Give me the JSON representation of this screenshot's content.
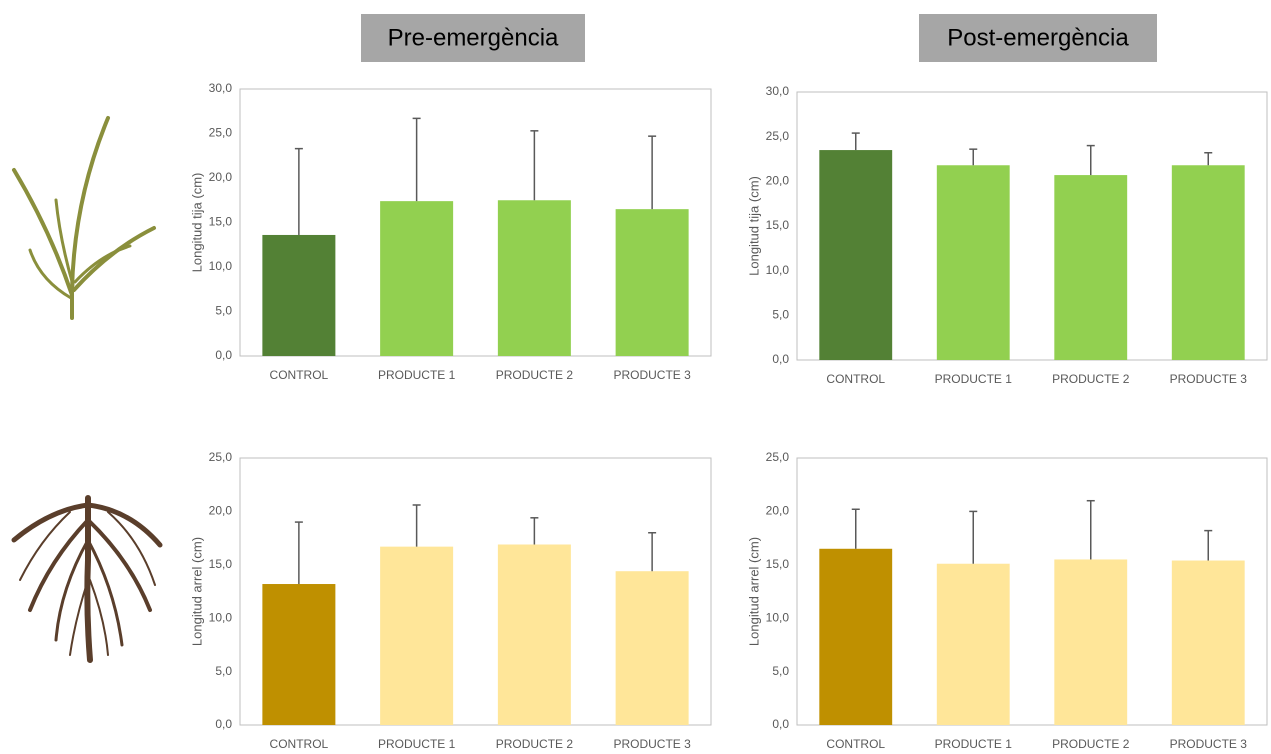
{
  "headers": [
    "Pre-emergència",
    "Post-emergència"
  ],
  "chart_data": [
    {
      "type": "bar",
      "y_label": "Longitud tija (cm)",
      "categories": [
        "CONTROL",
        "PRODUCTE 1",
        "PRODUCTE 2",
        "PRODUCTE 3"
      ],
      "values": [
        13.6,
        17.4,
        17.5,
        16.5
      ],
      "errors": [
        9.7,
        9.3,
        7.8,
        8.2
      ],
      "colors": [
        "#538135",
        "#92d050",
        "#92d050",
        "#92d050"
      ],
      "ylim": [
        0,
        30
      ],
      "yticks": [
        {
          "value": 0,
          "label": "0,0"
        },
        {
          "value": 5,
          "label": "5,0"
        },
        {
          "value": 10,
          "label": "10,0"
        },
        {
          "value": 15,
          "label": "15,0"
        },
        {
          "value": 20,
          "label": "20,0"
        },
        {
          "value": 25,
          "label": "25,0"
        },
        {
          "value": 30,
          "label": "30,0"
        }
      ],
      "grid": false
    },
    {
      "type": "bar",
      "y_label": "Longitud tija (cm)",
      "categories": [
        "CONTROL",
        "PRODUCTE 1",
        "PRODUCTE 2",
        "PRODUCTE 3"
      ],
      "values": [
        23.5,
        21.8,
        20.7,
        21.8
      ],
      "errors": [
        1.9,
        1.8,
        3.3,
        1.4
      ],
      "colors": [
        "#538135",
        "#92d050",
        "#92d050",
        "#92d050"
      ],
      "ylim": [
        0,
        30
      ],
      "yticks": [
        {
          "value": 0,
          "label": "0,0"
        },
        {
          "value": 5,
          "label": "5,0"
        },
        {
          "value": 10,
          "label": "10,0"
        },
        {
          "value": 15,
          "label": "15,0"
        },
        {
          "value": 20,
          "label": "20,0"
        },
        {
          "value": 25,
          "label": "25,0"
        },
        {
          "value": 30,
          "label": "30,0"
        }
      ],
      "grid": false
    },
    {
      "type": "bar",
      "y_label": "Longitud arrel (cm)",
      "categories": [
        "CONTROL",
        "PRODUCTE 1",
        "PRODUCTE 2",
        "PRODUCTE 3"
      ],
      "values": [
        13.2,
        16.7,
        16.9,
        14.4
      ],
      "errors": [
        5.8,
        3.9,
        2.5,
        3.6
      ],
      "colors": [
        "#bf9000",
        "#ffe699",
        "#ffe699",
        "#ffe699"
      ],
      "ylim": [
        0,
        25
      ],
      "yticks": [
        {
          "value": 0,
          "label": "0,0"
        },
        {
          "value": 5,
          "label": "5,0"
        },
        {
          "value": 10,
          "label": "10,0"
        },
        {
          "value": 15,
          "label": "15,0"
        },
        {
          "value": 20,
          "label": "20,0"
        },
        {
          "value": 25,
          "label": "25,0"
        }
      ],
      "grid": false
    },
    {
      "type": "bar",
      "y_label": "Longitud arrel (cm)",
      "categories": [
        "CONTROL",
        "PRODUCTE 1",
        "PRODUCTE 2",
        "PRODUCTE 3"
      ],
      "values": [
        16.5,
        15.1,
        15.5,
        15.4
      ],
      "errors": [
        3.7,
        4.9,
        5.5,
        2.8
      ],
      "colors": [
        "#bf9000",
        "#ffe699",
        "#ffe699",
        "#ffe699"
      ],
      "ylim": [
        0,
        25
      ],
      "yticks": [
        {
          "value": 0,
          "label": "0,0"
        },
        {
          "value": 5,
          "label": "5,0"
        },
        {
          "value": 10,
          "label": "10,0"
        },
        {
          "value": 15,
          "label": "15,0"
        },
        {
          "value": 20,
          "label": "20,0"
        },
        {
          "value": 25,
          "label": "25,0"
        }
      ],
      "grid": false
    }
  ]
}
